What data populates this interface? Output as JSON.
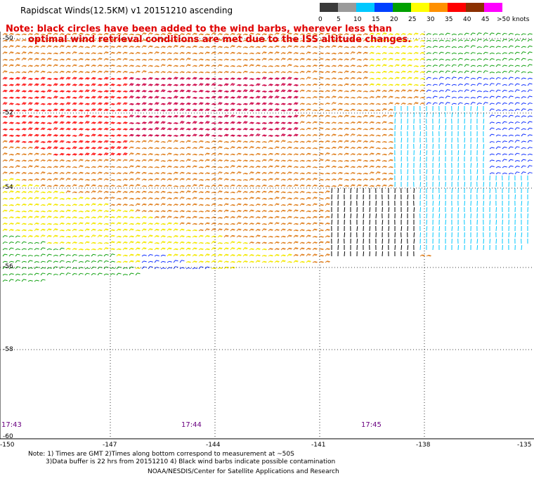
{
  "title": "Rapidscat Winds(12.5KM) v1 20151210 ascending",
  "note_line1": "Note: black circles have been added to the wind barbs, wherever less than",
  "note_line2": "optimal wind retrieval conditions are met due to the ISS altitude changes.",
  "legend": {
    "labels": [
      "0",
      "5",
      "10",
      "15",
      "20",
      "25",
      "30",
      "35",
      "40",
      "45",
      ">50 knots"
    ],
    "colors": [
      "#3a3a3a",
      "#9a9a9a",
      "#00c8ff",
      "#0040ff",
      "#00a000",
      "#ffff00",
      "#ff9000",
      "#ff0000",
      "#8b3000",
      "#ff00ff",
      "#6000a0"
    ]
  },
  "lat_labels": [
    "-50",
    "-52",
    "-54",
    "-56",
    "-58",
    "-60"
  ],
  "lon_labels": [
    "-150",
    "-147",
    "-144",
    "-141",
    "-138",
    "-135"
  ],
  "time_labels": [
    "17:43",
    "17:44",
    "17:45"
  ],
  "footer": {
    "line1": "Note: 1) Times are GMT 2)Times along bottom correspond to measurement at ~50S",
    "line2": "3)Data buffer is 22 hrs from 20151210 4) Black wind barbs indicate possible contamination",
    "line3": "NOAA/NESDIS/Center for Satellite Applications and Research"
  }
}
